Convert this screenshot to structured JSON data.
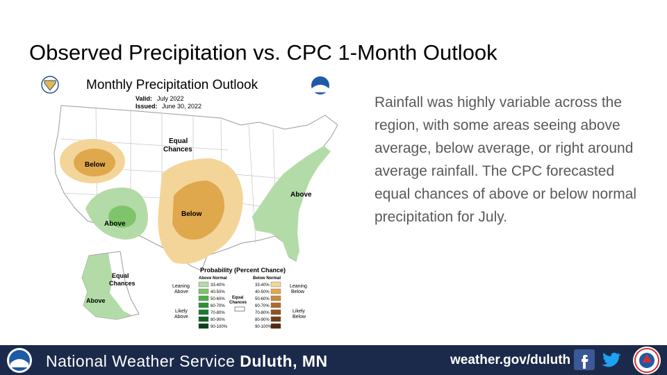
{
  "slide": {
    "title": "Observed Precipitation vs. CPC 1-Month Outlook",
    "body": "Rainfall was highly variable across the region, with some areas seeing above average, below average, or right around average rainfall. The CPC forecasted equal chances of above or below normal precipitation for July."
  },
  "map": {
    "title": "Monthly Precipitation Outlook",
    "valid_label": "Valid:",
    "valid_value": "July 2022",
    "issued_label": "Issued:",
    "issued_value": "June 30, 2022",
    "regions": {
      "below_west": "Below",
      "below_central": "Below",
      "above_southwest": "Above",
      "above_east": "Above",
      "above_alaska": "Above",
      "equal_chances_1": "Equal",
      "equal_chances_2": "Chances",
      "equal_ak_1": "Equal",
      "equal_ak_2": "Chances"
    },
    "legend": {
      "title": "Probability (Percent Chance)",
      "above_header": "Above Normal",
      "below_header": "Below Normal",
      "leaning_above_1": "Leaning",
      "leaning_above_2": "Above",
      "likely_above_1": "Likely",
      "likely_above_2": "Above",
      "leaning_below_1": "Leaning",
      "leaning_below_2": "Below",
      "likely_below_1": "Likely",
      "likely_below_2": "Below",
      "equal_1": "Equal",
      "equal_2": "Chances",
      "ranges": [
        "33-40%",
        "40-50%",
        "50-60%",
        "60-70%",
        "70-80%",
        "80-90%",
        "90-100%"
      ],
      "above_colors": [
        "#b3dba7",
        "#7ec46b",
        "#4fae45",
        "#2f8f38",
        "#1d7a32",
        "#155f27",
        "#0c3f18"
      ],
      "below_colors": [
        "#f3d59a",
        "#e0a84c",
        "#c98a3c",
        "#b06b2a",
        "#93531f",
        "#733d16",
        "#52290f"
      ]
    }
  },
  "footer": {
    "org": "National Weather Service",
    "office": "Duluth, MN",
    "url": "weather.gov/duluth",
    "icons": [
      "noaa-logo-icon",
      "facebook-icon",
      "twitter-icon",
      "nws-seal-icon"
    ]
  }
}
